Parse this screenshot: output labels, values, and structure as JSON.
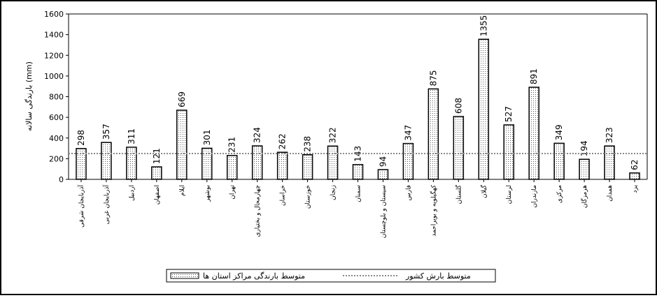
{
  "chart_data": {
    "type": "bar",
    "ylabel": "بارندگی سالانه (mm)",
    "categories": [
      "آذربایجان شرقی",
      "آذربایجان غربی",
      "اردبیل",
      "اصفهان",
      "ایلام",
      "بوشهر",
      "تهران",
      "چهارمحال و بختیاری",
      "خراسان",
      "خوزستان",
      "زنجان",
      "سمنان",
      "سیستان و بلوچستان",
      "فارس",
      "کهگیلویه و بویراحمد",
      "گلستان",
      "گیلان",
      "لرستان",
      "مازندران",
      "مرکزی",
      "هرمزگان",
      "همدان",
      "یزد"
    ],
    "series": [
      {
        "name": "متوسط بارندگی مراکز استان ها",
        "color": "#000000",
        "values": [
          298,
          357,
          311,
          121,
          669,
          301,
          231,
          324,
          262,
          238,
          322,
          143,
          94,
          347,
          875,
          608,
          1355,
          527,
          891,
          349,
          194,
          323,
          62
        ]
      }
    ],
    "average": {
      "name": "متوسط بارش کشور",
      "value": 250
    },
    "ylim": [
      0,
      1600
    ],
    "yticks": [
      0,
      200,
      400,
      600,
      800,
      1000,
      1200,
      1400,
      1600
    ]
  }
}
